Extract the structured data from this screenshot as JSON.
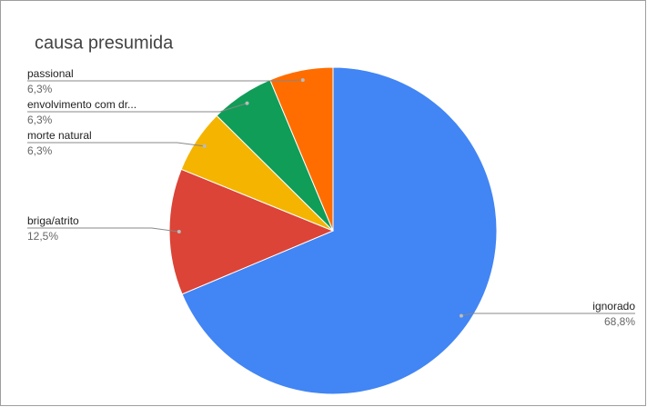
{
  "chart_data": {
    "type": "pie",
    "title": "causa presumida",
    "categories": [
      "ignorado",
      "briga/atrito",
      "morte natural",
      "envolvimento com dr...",
      "passional"
    ],
    "values": [
      68.8,
      12.5,
      6.3,
      6.3,
      6.3
    ],
    "value_labels": [
      "68,8%",
      "12,5%",
      "6,3%",
      "6,3%",
      "6,3%"
    ],
    "colors": [
      "#4285f4",
      "#db4437",
      "#f4b400",
      "#0f9d58",
      "#ff6d01"
    ]
  }
}
